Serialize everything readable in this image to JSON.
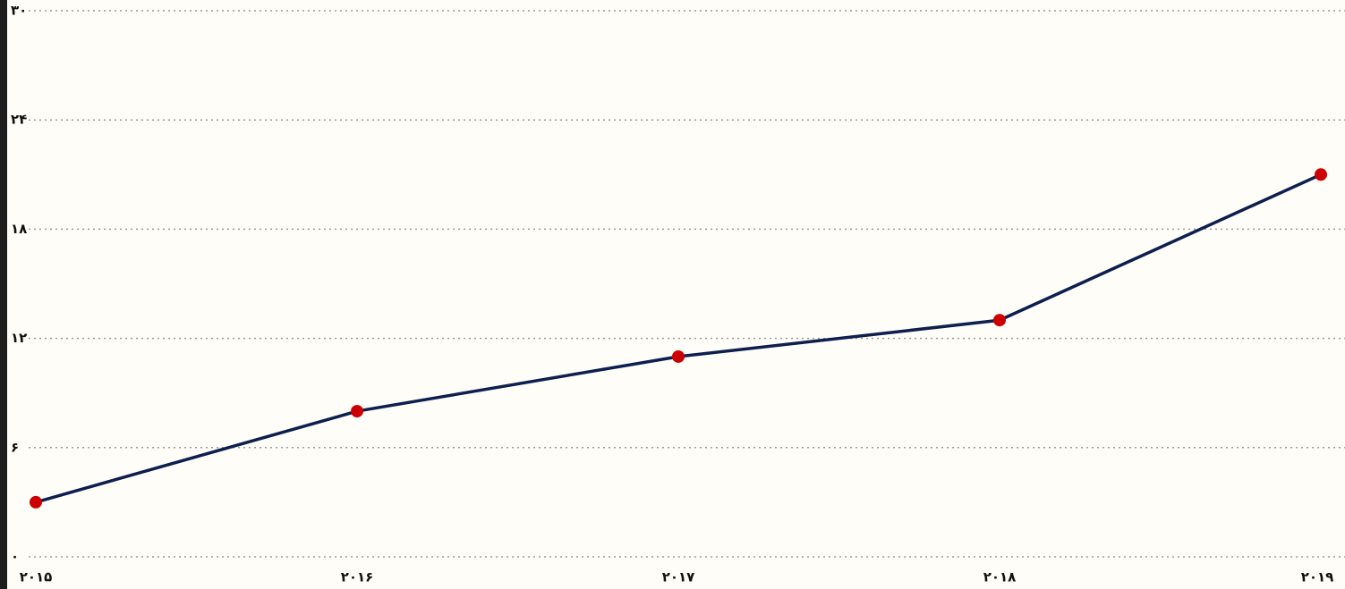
{
  "chart_data": {
    "type": "line",
    "categories": [
      "۲۰۱۵",
      "۲۰۱۶",
      "۲۰۱۷",
      "۲۰۱۸",
      "۲۰۱۹"
    ],
    "series": [
      {
        "color": "#0d1f4f",
        "marker_color": "#cc0000",
        "values": [
          3,
          8,
          11,
          13,
          21
        ]
      }
    ],
    "ylim": [
      0,
      30
    ],
    "yticks": [
      {
        "value": 0,
        "label": "۰"
      },
      {
        "value": 6,
        "label": "۶"
      },
      {
        "value": 12,
        "label": "۱۲"
      },
      {
        "value": 18,
        "label": "۱۸"
      },
      {
        "value": 24,
        "label": "۲۴"
      },
      {
        "value": 30,
        "label": "۳۰"
      }
    ],
    "grid": true
  }
}
